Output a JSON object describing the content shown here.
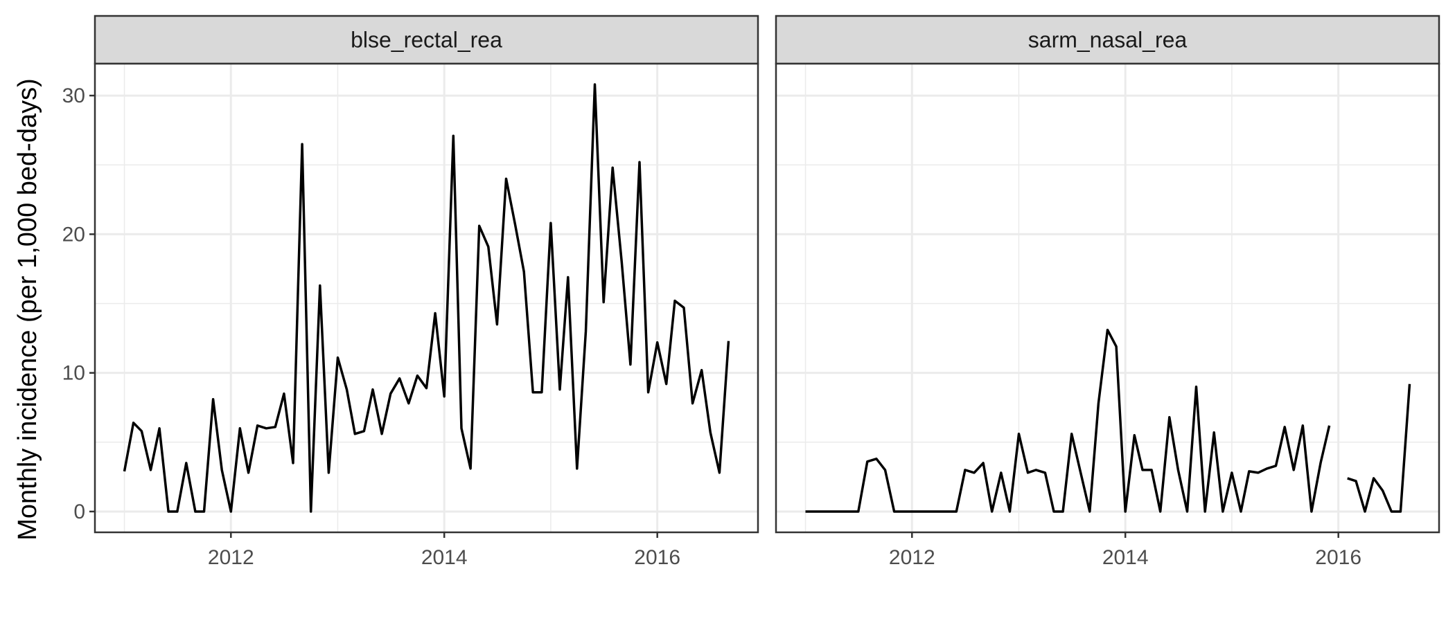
{
  "chart_data": {
    "type": "line",
    "ylabel": "Monthly incidence (per 1,000 bed-days)",
    "xlabel": "",
    "ylim": [
      -1.5,
      32.3
    ],
    "y_ticks": [
      0,
      10,
      20,
      30
    ],
    "y_tick_labels": [
      "0",
      "10",
      "20",
      "30"
    ],
    "xlim": [
      "2010-09-22",
      "2016-12-11"
    ],
    "x_ticks": [
      "2012-01-01",
      "2014-01-01",
      "2016-01-01"
    ],
    "x_tick_labels": [
      "2012",
      "2014",
      "2016"
    ],
    "x_minor_ticks": [
      "2011-01-01",
      "2013-01-01",
      "2015-01-01"
    ],
    "grid": true,
    "line_color": "#000000",
    "facets": [
      {
        "title": "blse_rectal_rea",
        "series": [
          {
            "x": [
              "2011-01",
              "2011-02",
              "2011-03",
              "2011-04",
              "2011-05",
              "2011-06",
              "2011-07",
              "2011-08",
              "2011-09",
              "2011-10",
              "2011-11",
              "2011-12",
              "2012-01",
              "2012-02",
              "2012-03",
              "2012-04",
              "2012-05",
              "2012-06",
              "2012-07",
              "2012-08",
              "2012-09",
              "2012-10",
              "2012-11",
              "2012-12",
              "2013-01",
              "2013-02",
              "2013-03",
              "2013-04",
              "2013-05",
              "2013-06",
              "2013-07",
              "2013-08",
              "2013-09",
              "2013-10",
              "2013-11",
              "2013-12",
              "2014-01",
              "2014-02",
              "2014-03",
              "2014-04",
              "2014-05",
              "2014-06",
              "2014-07",
              "2014-08",
              "2014-09",
              "2014-10",
              "2014-11",
              "2014-12",
              "2015-01",
              "2015-02",
              "2015-03",
              "2015-04",
              "2015-05",
              "2015-06",
              "2015-07",
              "2015-08",
              "2015-09",
              "2015-10",
              "2015-11",
              "2015-12",
              "2016-01",
              "2016-02",
              "2016-03",
              "2016-04",
              "2016-05",
              "2016-06",
              "2016-07",
              "2016-08",
              "2016-09"
            ],
            "y": [
              2.9,
              6.4,
              5.8,
              3.0,
              6.0,
              0,
              0,
              3.5,
              0,
              0,
              8.1,
              3.0,
              0,
              6.0,
              2.8,
              6.2,
              6.0,
              6.1,
              8.5,
              3.5,
              26.5,
              0,
              16.3,
              2.8,
              11.1,
              8.8,
              5.6,
              5.8,
              8.8,
              5.6,
              8.5,
              9.6,
              7.8,
              9.8,
              8.9,
              14.3,
              8.3,
              27.1,
              6.0,
              3.1,
              20.6,
              19.1,
              13.5,
              24.0,
              20.7,
              17.3,
              8.6,
              8.6,
              20.8,
              8.8,
              16.9,
              3.1,
              13.0,
              30.8,
              15.1,
              24.8,
              18.0,
              10.6,
              25.2,
              8.6,
              12.2,
              9.2,
              15.2,
              14.7,
              7.8,
              10.2,
              5.7,
              2.8,
              12.3
            ]
          }
        ]
      },
      {
        "title": "sarm_nasal_rea",
        "series": [
          {
            "x": [
              "2011-01",
              "2011-02",
              "2011-03",
              "2011-04",
              "2011-05",
              "2011-06",
              "2011-07",
              "2011-08",
              "2011-09",
              "2011-10",
              "2011-11",
              "2011-12",
              "2012-01",
              "2012-02",
              "2012-03",
              "2012-04",
              "2012-05",
              "2012-06",
              "2012-07",
              "2012-08",
              "2012-09",
              "2012-10",
              "2012-11",
              "2012-12",
              "2013-01",
              "2013-02",
              "2013-03",
              "2013-04",
              "2013-05",
              "2013-06",
              "2013-07",
              "2013-08",
              "2013-09",
              "2013-10",
              "2013-11",
              "2013-12",
              "2014-01",
              "2014-02",
              "2014-03",
              "2014-04",
              "2014-05",
              "2014-06",
              "2014-07",
              "2014-08",
              "2014-09",
              "2014-10",
              "2014-11",
              "2014-12",
              "2015-01",
              "2015-02",
              "2015-03",
              "2015-04",
              "2015-05",
              "2015-06",
              "2015-07",
              "2015-08",
              "2015-09",
              "2015-10",
              "2015-11",
              "2015-12",
              "2016-01",
              "2016-02",
              "2016-03",
              "2016-04",
              "2016-05",
              "2016-06",
              "2016-07",
              "2016-08",
              "2016-09"
            ],
            "y": [
              0,
              0,
              0,
              0,
              0,
              0,
              0,
              3.6,
              3.8,
              3.0,
              0,
              0,
              0,
              0,
              0,
              0,
              0,
              0,
              3.0,
              2.8,
              3.5,
              0,
              2.8,
              0,
              5.6,
              2.8,
              3.0,
              2.8,
              0,
              0,
              5.6,
              2.8,
              0,
              7.8,
              13.1,
              11.9,
              0,
              5.5,
              3.0,
              3.0,
              0,
              6.8,
              3.0,
              0,
              9.0,
              0,
              5.7,
              0,
              2.8,
              0,
              2.9,
              2.8,
              3.1,
              3.3,
              6.1,
              3.0,
              6.2,
              0,
              3.5,
              6.2,
              null,
              2.4,
              2.2,
              0,
              2.4,
              1.5,
              0,
              0,
              9.2
            ]
          }
        ]
      }
    ]
  }
}
